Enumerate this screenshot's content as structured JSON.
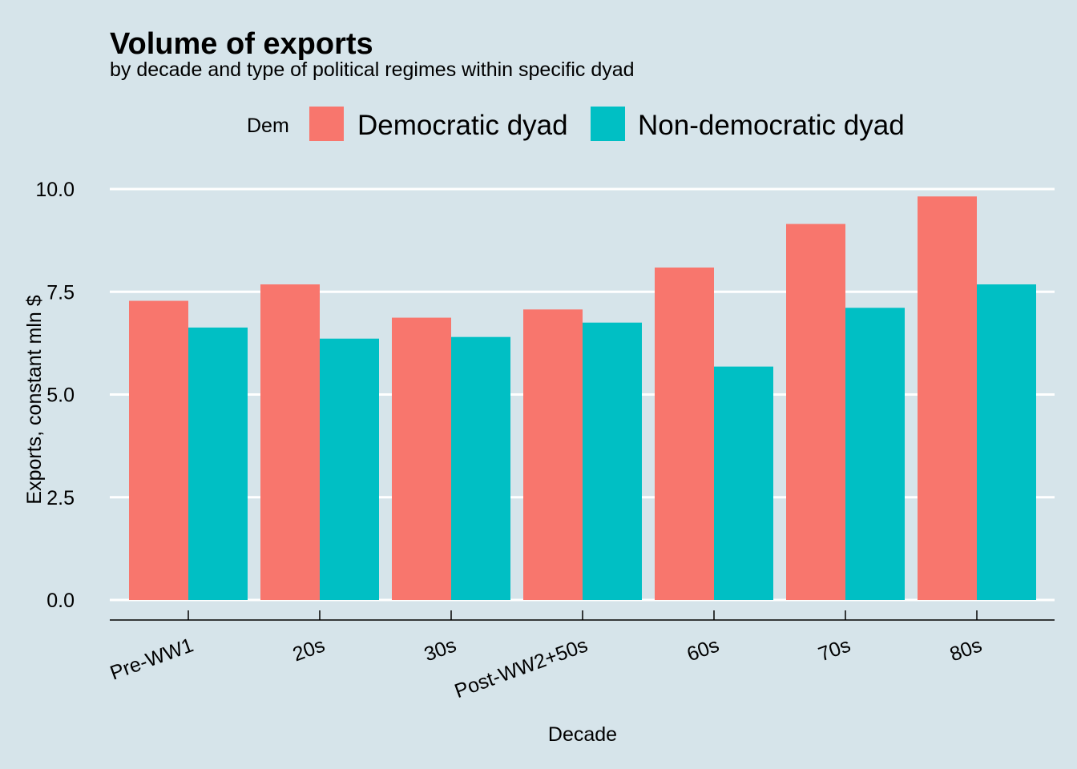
{
  "chart_data": {
    "type": "bar",
    "title": "Volume of exports",
    "subtitle": "by decade and type of political regimes within specific dyad",
    "xlabel": "Decade",
    "ylabel": "Exports, constant mln $",
    "categories": [
      "Pre-WW1",
      "20s",
      "30s",
      "Post-WW2+50s",
      "60s",
      "70s",
      "80s"
    ],
    "series": [
      {
        "name": "Democratic dyad",
        "color": "#f8766d",
        "values": [
          7.28,
          7.68,
          6.87,
          7.07,
          8.09,
          9.15,
          9.82
        ]
      },
      {
        "name": "Non-democratic dyad",
        "color": "#00bfc4",
        "values": [
          6.63,
          6.36,
          6.4,
          6.75,
          5.68,
          7.11,
          7.68
        ]
      }
    ],
    "legend_title": "Dem",
    "legend_position": "top",
    "ylim": [
      0,
      10.5
    ],
    "yticks": [
      "0.0",
      "2.5",
      "5.0",
      "7.5",
      "10.0"
    ],
    "ytick_values": [
      0,
      2.5,
      5,
      7.5,
      10
    ],
    "grid": true,
    "background": "#d6e4ea",
    "gridline_color": "#ffffff"
  }
}
